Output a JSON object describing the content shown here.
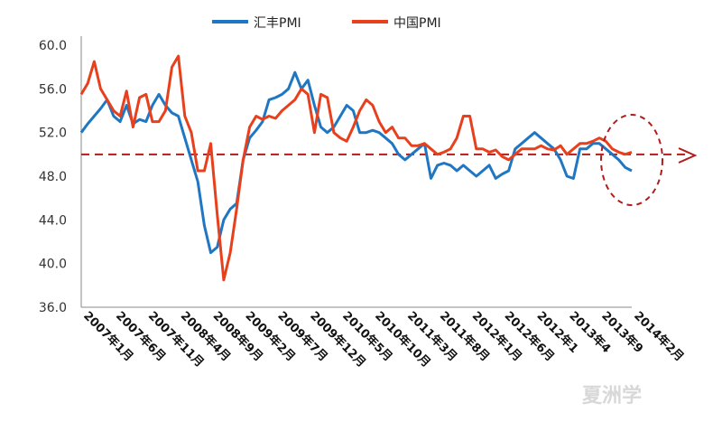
{
  "chart_data": {
    "type": "line",
    "title": "",
    "xlabel": "",
    "ylabel": "",
    "ylim": [
      36.0,
      60.0
    ],
    "y_ticks": [
      "36.0",
      "40.0",
      "44.0",
      "48.0",
      "52.0",
      "56.0",
      "60.0"
    ],
    "x": [
      "2007年1月",
      "2007年2月",
      "2007年3月",
      "2007年4月",
      "2007年5月",
      "2007年6月",
      "2007年7月",
      "2007年8月",
      "2007年9月",
      "2007年10月",
      "2007年11月",
      "2007年12月",
      "2008年1月",
      "2008年2月",
      "2008年3月",
      "2008年4月",
      "2008年5月",
      "2008年6月",
      "2008年7月",
      "2008年8月",
      "2008年9月",
      "2008年10月",
      "2008年11月",
      "2008年12月",
      "2009年1月",
      "2009年2月",
      "2009年3月",
      "2009年4月",
      "2009年5月",
      "2009年6月",
      "2009年7月",
      "2009年8月",
      "2009年9月",
      "2009年10月",
      "2009年11月",
      "2009年12月",
      "2010年1月",
      "2010年2月",
      "2010年3月",
      "2010年4月",
      "2010年5月",
      "2010年6月",
      "2010年7月",
      "2010年8月",
      "2010年9月",
      "2010年10月",
      "2010年11月",
      "2010年12月",
      "2011年1月",
      "2011年2月",
      "2011年3月",
      "2011年4月",
      "2011年5月",
      "2011年6月",
      "2011年7月",
      "2011年8月",
      "2011年9月",
      "2011年10月",
      "2011年11月",
      "2011年12月",
      "2012年1月",
      "2012年2月",
      "2012年3月",
      "2012年4月",
      "2012年5月",
      "2012年6月",
      "2012年7月",
      "2012年8月",
      "2012年9月",
      "2012年10月",
      "2012年11月",
      "2012年12月",
      "2013年1月",
      "2013年2月",
      "2013年3月",
      "2013年4月",
      "2013年5月",
      "2013年6月",
      "2013年7月",
      "2013年8月",
      "2013年9月",
      "2013年10月",
      "2013年11月",
      "2013年12月",
      "2014年1月",
      "2014年2月"
    ],
    "x_tick_labels": [
      "2007年1月",
      "2007年6月",
      "2007年11月",
      "2008年4月",
      "2008年9月",
      "2009年2月",
      "2009年7月",
      "2009年12月",
      "2010年5月",
      "2010年10月",
      "2011年3月",
      "2011年8月",
      "2012年1月",
      "2012年6月",
      "2012年1",
      "2013年4",
      "2013年9",
      "2014年2月"
    ],
    "series": [
      {
        "name": "汇丰PMI",
        "color": "#1f77c4",
        "values": [
          52.0,
          52.8,
          53.5,
          54.2,
          55.0,
          53.5,
          53.0,
          54.5,
          52.8,
          53.2,
          53.0,
          54.5,
          55.5,
          54.5,
          53.8,
          53.5,
          51.5,
          49.5,
          47.5,
          43.5,
          41.0,
          41.5,
          44.0,
          45.0,
          45.5,
          49.5,
          51.5,
          52.2,
          53.0,
          55.0,
          55.2,
          55.5,
          56.0,
          57.5,
          56.0,
          56.8,
          54.5,
          52.5,
          52.0,
          52.5,
          53.5,
          54.5,
          54.0,
          52.0,
          52.0,
          52.2,
          52.0,
          51.5,
          51.0,
          50.0,
          49.5,
          50.0,
          50.5,
          51.0,
          47.8,
          49.0,
          49.2,
          49.0,
          48.5,
          49.0,
          48.5,
          48.0,
          48.5,
          49.0,
          47.8,
          48.2,
          48.5,
          50.5,
          51.0,
          51.5,
          52.0,
          51.5,
          51.0,
          50.5,
          49.5,
          48.0,
          47.8,
          50.5,
          50.5,
          51.0,
          51.0,
          50.5,
          50.0,
          49.5,
          48.8,
          48.5
        ]
      },
      {
        "name": "中国PMI",
        "color": "#e8401c",
        "values": [
          55.5,
          56.5,
          58.5,
          56.0,
          55.0,
          54.0,
          53.5,
          55.8,
          52.5,
          55.2,
          55.5,
          53.0,
          53.0,
          54.0,
          58.0,
          59.0,
          53.5,
          52.0,
          48.5,
          48.5,
          51.0,
          44.5,
          38.5,
          41.0,
          45.0,
          49.5,
          52.5,
          53.5,
          53.2,
          53.5,
          53.3,
          54.0,
          54.5,
          55.0,
          56.0,
          55.5,
          52.0,
          55.5,
          55.2,
          52.0,
          51.5,
          51.2,
          52.5,
          54.0,
          55.0,
          54.5,
          53.0,
          52.0,
          52.5,
          51.5,
          51.5,
          50.8,
          50.8,
          51.0,
          50.5,
          50.0,
          50.2,
          50.5,
          51.5,
          53.5,
          53.5,
          50.5,
          50.5,
          50.2,
          50.4,
          49.8,
          49.5,
          50.0,
          50.5,
          50.5,
          50.5,
          50.8,
          50.5,
          50.4,
          50.8,
          50.0,
          50.5,
          51.0,
          51.0,
          51.2,
          51.5,
          51.2,
          50.5,
          50.2,
          50.0,
          50.2
        ]
      }
    ],
    "reference_line": {
      "value": 50.0,
      "color": "#b01d1d",
      "style": "dashed"
    },
    "highlight": {
      "shape": "dashed-ellipse",
      "color": "#b01d1d"
    },
    "grid": false,
    "legend": {
      "placement": "top-center",
      "entries": [
        "汇丰PMI",
        "中国PMI"
      ]
    }
  },
  "watermark_text": "夏洲学"
}
